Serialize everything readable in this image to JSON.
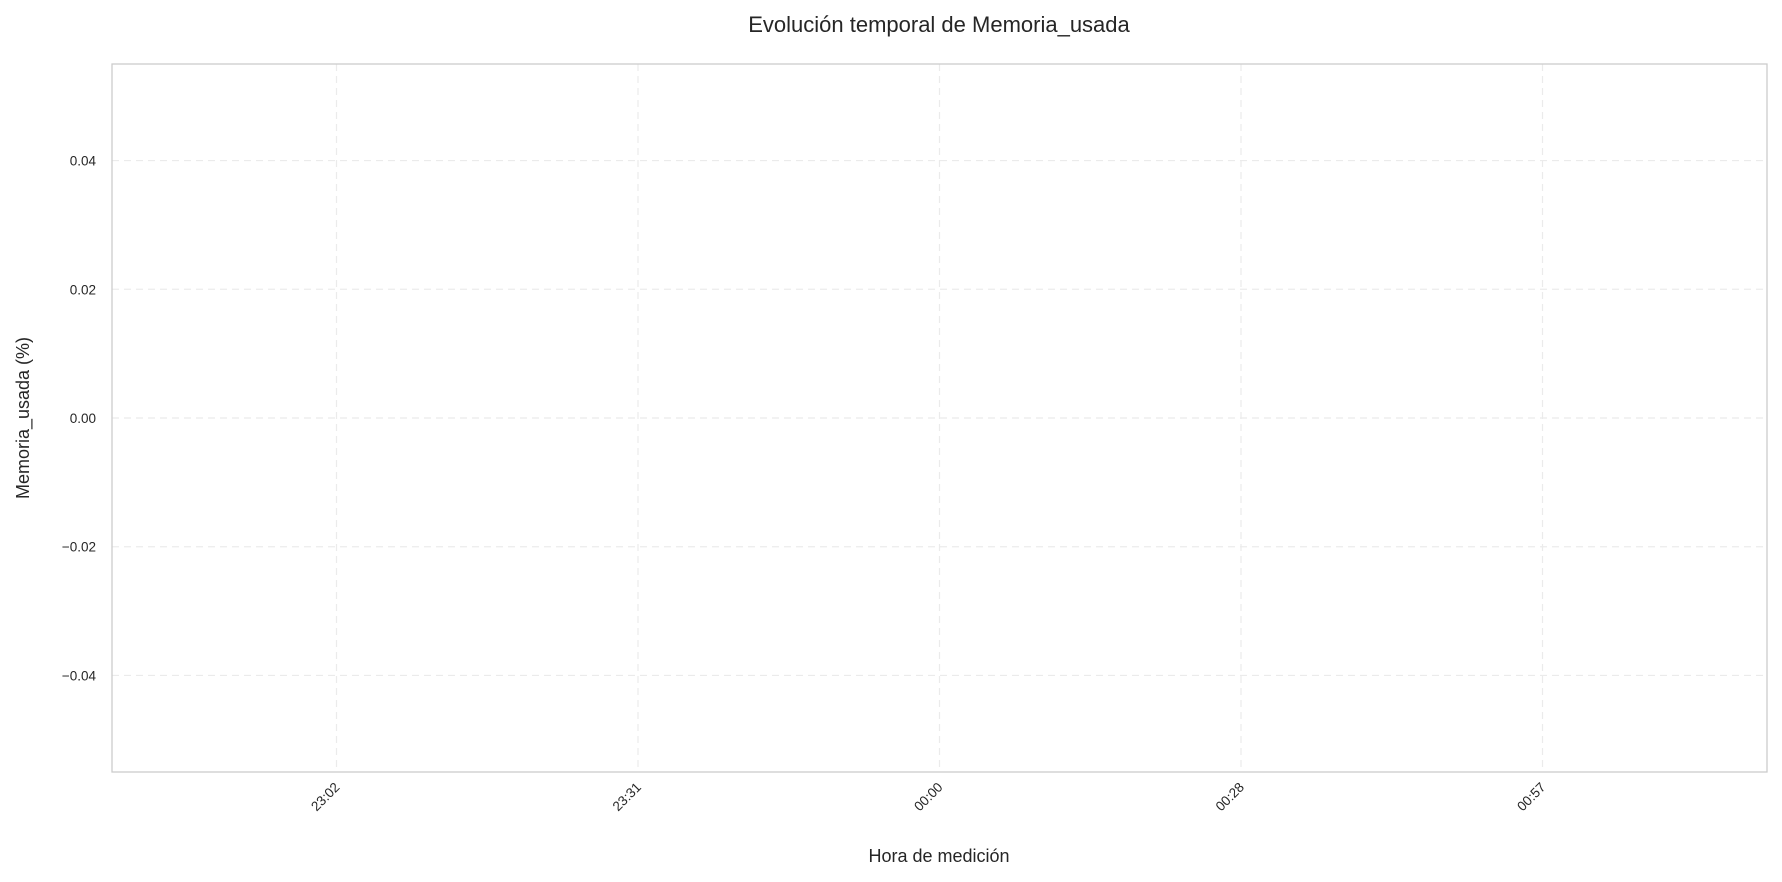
{
  "chart_data": {
    "type": "line",
    "title": "Evolución temporal de Memoria_usada",
    "xlabel": "Hora de medición",
    "ylabel": "Memoria_usada (%)",
    "x_ticks": [
      "23:02",
      "23:31",
      "00:00",
      "00:28",
      "00:57"
    ],
    "y_ticks": [
      "0.04",
      "0.02",
      "0.00",
      "−0.02",
      "−0.04"
    ],
    "y_tick_values": [
      0.04,
      0.02,
      0.0,
      -0.02,
      -0.04
    ],
    "ylim": [
      -0.055,
      0.055
    ],
    "series": [],
    "grid": true,
    "grid_style": "dashed",
    "colors": {
      "frame": "#cccccc",
      "grid": "#ebebeb",
      "text": "#262626",
      "background": "#ffffff"
    }
  }
}
